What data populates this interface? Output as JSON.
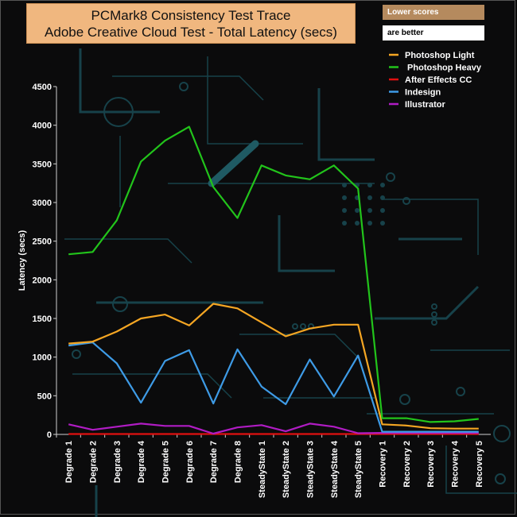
{
  "title_lines": [
    "PCMark8 Consistency Test Trace",
    "Adobe Creative Cloud Test -  Total Latency (secs)"
  ],
  "notes": [
    "Lower scores",
    "are better"
  ],
  "chart_data": {
    "type": "line",
    "title": "PCMark8 Consistency Test Trace Adobe Creative Cloud Test -  Total Latency (secs)",
    "xlabel": "",
    "ylabel": "Latency (secs)",
    "ylim": [
      0,
      4500
    ],
    "yticks": [
      0,
      500,
      1000,
      1500,
      2000,
      2500,
      3000,
      3500,
      4000,
      4500
    ],
    "grid": false,
    "legend_position": "top-right",
    "categories": [
      "Degrade 1",
      "Degrade 2",
      "Degrade 3",
      "Degrade 4",
      "Degrade 5",
      "Degrade 6",
      "Degrade 7",
      "Degrade 8",
      "SteadyState 1",
      "SteadyState 2",
      "SteadyState 3",
      "SteadyState 4",
      "SteadyState 5",
      "Recovery 1",
      "Recovery 2",
      "Recovery 3",
      "Recovery 4",
      "Recovery 5"
    ],
    "series": [
      {
        "name": "Photoshop Light",
        "color": "#f5a623",
        "values": [
          1175,
          1200,
          1330,
          1500,
          1550,
          1410,
          1690,
          1630,
          1450,
          1270,
          1370,
          1420,
          1420,
          130,
          115,
          80,
          75,
          75
        ]
      },
      {
        "name": " Photoshop Heavy",
        "color": "#22c41b",
        "values": [
          2330,
          2360,
          2770,
          3530,
          3800,
          3980,
          3200,
          2800,
          3480,
          3350,
          3300,
          3480,
          3180,
          210,
          210,
          160,
          170,
          200
        ]
      },
      {
        "name": "After Effects CC",
        "color": "#e01010",
        "values": [
          5,
          5,
          5,
          5,
          5,
          5,
          5,
          5,
          5,
          5,
          5,
          5,
          5,
          5,
          5,
          5,
          5,
          5
        ]
      },
      {
        "name": "Indesign",
        "color": "#3e9be6",
        "values": [
          1150,
          1190,
          920,
          410,
          950,
          1090,
          400,
          1100,
          620,
          390,
          970,
          490,
          1020,
          35,
          35,
          35,
          35,
          35
        ]
      },
      {
        "name": "Illustrator",
        "color": "#b01cc4",
        "values": [
          130,
          60,
          100,
          140,
          110,
          110,
          10,
          90,
          120,
          40,
          140,
          100,
          15,
          20,
          20,
          20,
          20,
          20
        ]
      }
    ]
  }
}
